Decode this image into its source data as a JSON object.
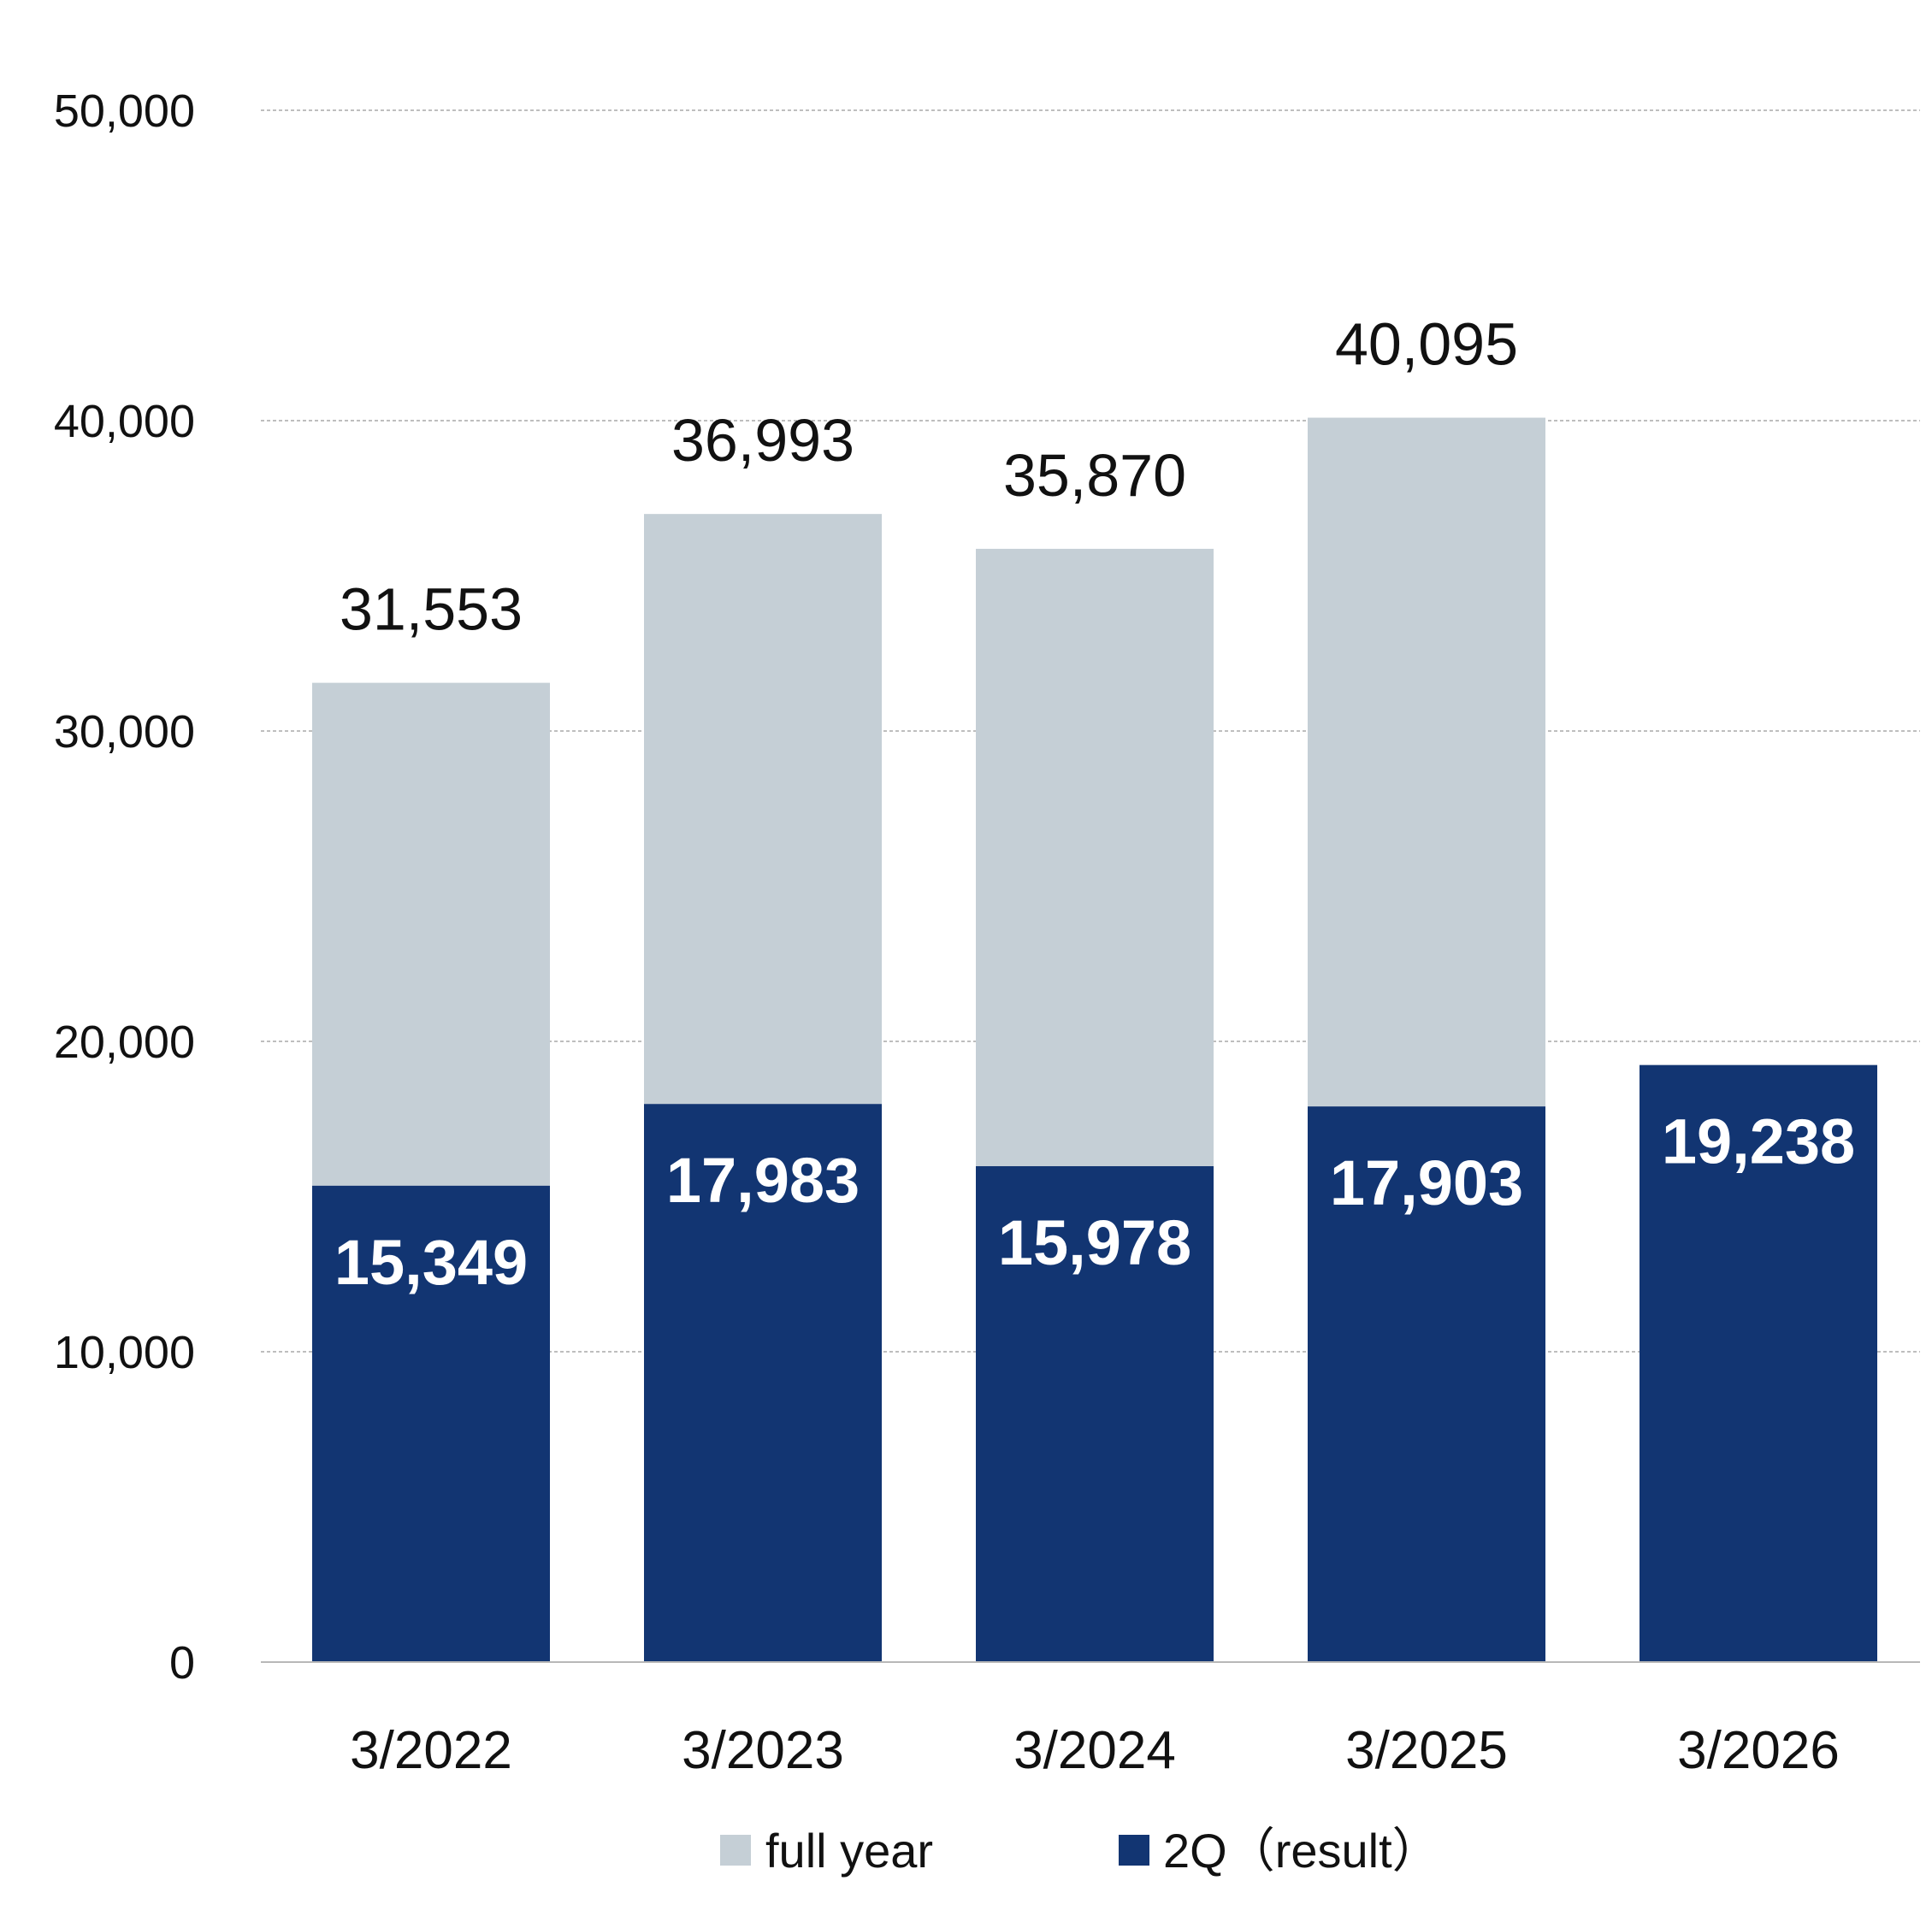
{
  "chart_data": {
    "type": "bar",
    "stacked": true,
    "categories": [
      "3/2022",
      "3/2023",
      "3/2024",
      "3/2025",
      "3/2026"
    ],
    "series": [
      {
        "name": "full year",
        "color": "#c5cfd6",
        "totals": [
          31553,
          36993,
          35870,
          40095,
          null
        ],
        "total_labels": [
          "31,553",
          "36,993",
          "35,870",
          "40,095",
          ""
        ]
      },
      {
        "name": "2Q（result）",
        "color": "#123572",
        "values": [
          15349,
          17983,
          15978,
          17903,
          19238
        ],
        "value_labels": [
          "15,349",
          "17,983",
          "15,978",
          "17,903",
          "19,238"
        ]
      }
    ],
    "ylim": [
      0,
      50000
    ],
    "yticks": [
      0,
      10000,
      20000,
      30000,
      40000,
      50000
    ],
    "ytick_labels": [
      "0",
      "10,000",
      "20,000",
      "30,000",
      "40,000",
      "50,000"
    ],
    "grid": true,
    "legend_position": "bottom",
    "legend": [
      "full year",
      "2Q（result）"
    ]
  }
}
